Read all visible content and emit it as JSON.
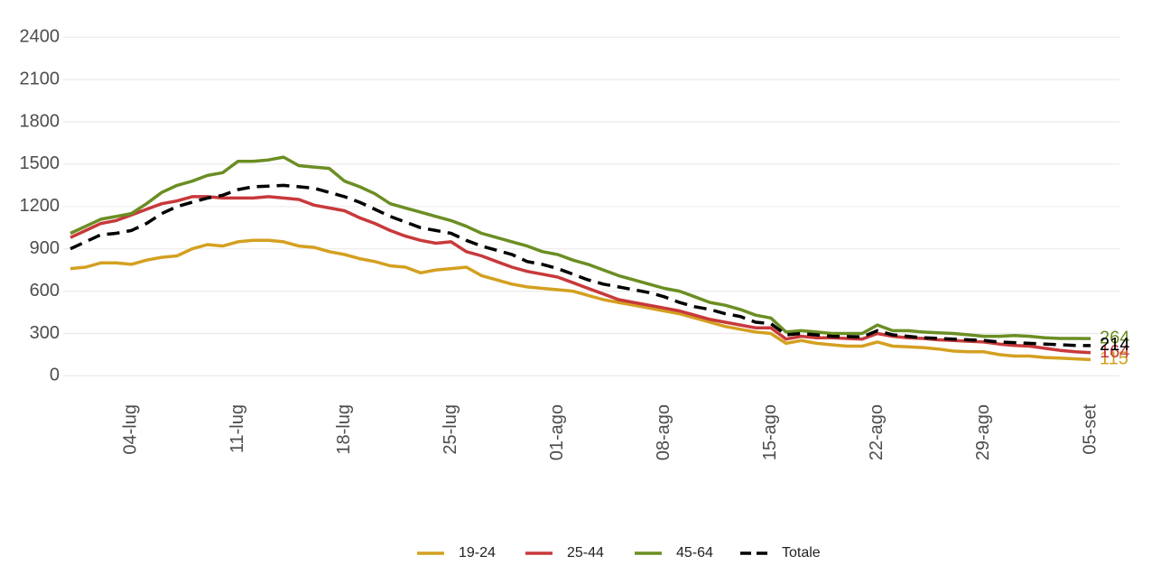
{
  "chart_data": {
    "type": "line",
    "categories": [
      null,
      null,
      null,
      null,
      "04-lug",
      null,
      null,
      null,
      null,
      null,
      null,
      "11-lug",
      null,
      null,
      null,
      null,
      null,
      null,
      "18-lug",
      null,
      null,
      null,
      null,
      null,
      null,
      "25-lug",
      null,
      null,
      null,
      null,
      null,
      null,
      "01-ago",
      null,
      null,
      null,
      null,
      null,
      null,
      "08-ago",
      null,
      null,
      null,
      null,
      null,
      null,
      "15-ago",
      null,
      null,
      null,
      null,
      null,
      null,
      "22-ago",
      null,
      null,
      null,
      null,
      null,
      null,
      "29-ago",
      null,
      null,
      null,
      null,
      null,
      null,
      "05-set"
    ],
    "series": [
      {
        "name": "19-24",
        "color": "#d4a020",
        "line_style": "solid",
        "values": [
          760,
          770,
          800,
          800,
          790,
          820,
          840,
          850,
          900,
          930,
          920,
          950,
          960,
          960,
          950,
          920,
          910,
          880,
          860,
          830,
          810,
          780,
          770,
          730,
          750,
          760,
          770,
          710,
          680,
          650,
          630,
          620,
          610,
          600,
          570,
          540,
          520,
          500,
          480,
          460,
          440,
          410,
          380,
          350,
          330,
          310,
          300,
          230,
          250,
          230,
          220,
          210,
          210,
          240,
          210,
          205,
          200,
          190,
          175,
          170,
          170,
          150,
          140,
          140,
          130,
          125,
          120,
          115
        ]
      },
      {
        "name": "25-44",
        "color": "#c8393b",
        "line_style": "solid",
        "values": [
          980,
          1030,
          1080,
          1100,
          1140,
          1180,
          1220,
          1240,
          1270,
          1270,
          1260,
          1260,
          1260,
          1270,
          1260,
          1250,
          1210,
          1190,
          1170,
          1120,
          1080,
          1030,
          990,
          960,
          940,
          950,
          880,
          850,
          810,
          770,
          740,
          720,
          700,
          660,
          620,
          580,
          540,
          520,
          500,
          480,
          460,
          430,
          400,
          380,
          360,
          340,
          340,
          260,
          280,
          270,
          270,
          265,
          260,
          300,
          280,
          270,
          265,
          255,
          250,
          245,
          240,
          225,
          215,
          210,
          195,
          180,
          170,
          164
        ]
      },
      {
        "name": "45-64",
        "color": "#6b8e23",
        "line_style": "solid",
        "values": [
          1010,
          1060,
          1110,
          1130,
          1150,
          1220,
          1300,
          1350,
          1380,
          1420,
          1440,
          1520,
          1520,
          1530,
          1550,
          1490,
          1480,
          1470,
          1380,
          1340,
          1290,
          1220,
          1190,
          1160,
          1130,
          1100,
          1060,
          1010,
          980,
          950,
          920,
          880,
          860,
          820,
          790,
          750,
          710,
          680,
          650,
          620,
          600,
          560,
          520,
          500,
          470,
          430,
          410,
          310,
          320,
          310,
          300,
          300,
          300,
          360,
          320,
          320,
          310,
          305,
          300,
          290,
          280,
          280,
          285,
          280,
          270,
          265,
          265,
          264
        ]
      },
      {
        "name": "Totale",
        "color": "#000000",
        "line_style": "dashed",
        "values": [
          900,
          950,
          1000,
          1010,
          1030,
          1080,
          1150,
          1200,
          1230,
          1260,
          1280,
          1320,
          1340,
          1345,
          1350,
          1340,
          1330,
          1300,
          1270,
          1230,
          1180,
          1130,
          1090,
          1050,
          1030,
          1010,
          960,
          920,
          890,
          860,
          810,
          790,
          760,
          720,
          680,
          650,
          630,
          610,
          590,
          560,
          520,
          490,
          470,
          440,
          420,
          380,
          370,
          290,
          300,
          290,
          280,
          278,
          275,
          320,
          290,
          280,
          270,
          265,
          260,
          255,
          250,
          240,
          235,
          230,
          225,
          220,
          215,
          214
        ]
      }
    ],
    "ylim": [
      -100,
      2600
    ],
    "yticks": [
      0,
      300,
      600,
      900,
      1200,
      1500,
      1800,
      2100,
      2400
    ],
    "grid": true,
    "legend": "bottom",
    "end_labels": true
  }
}
